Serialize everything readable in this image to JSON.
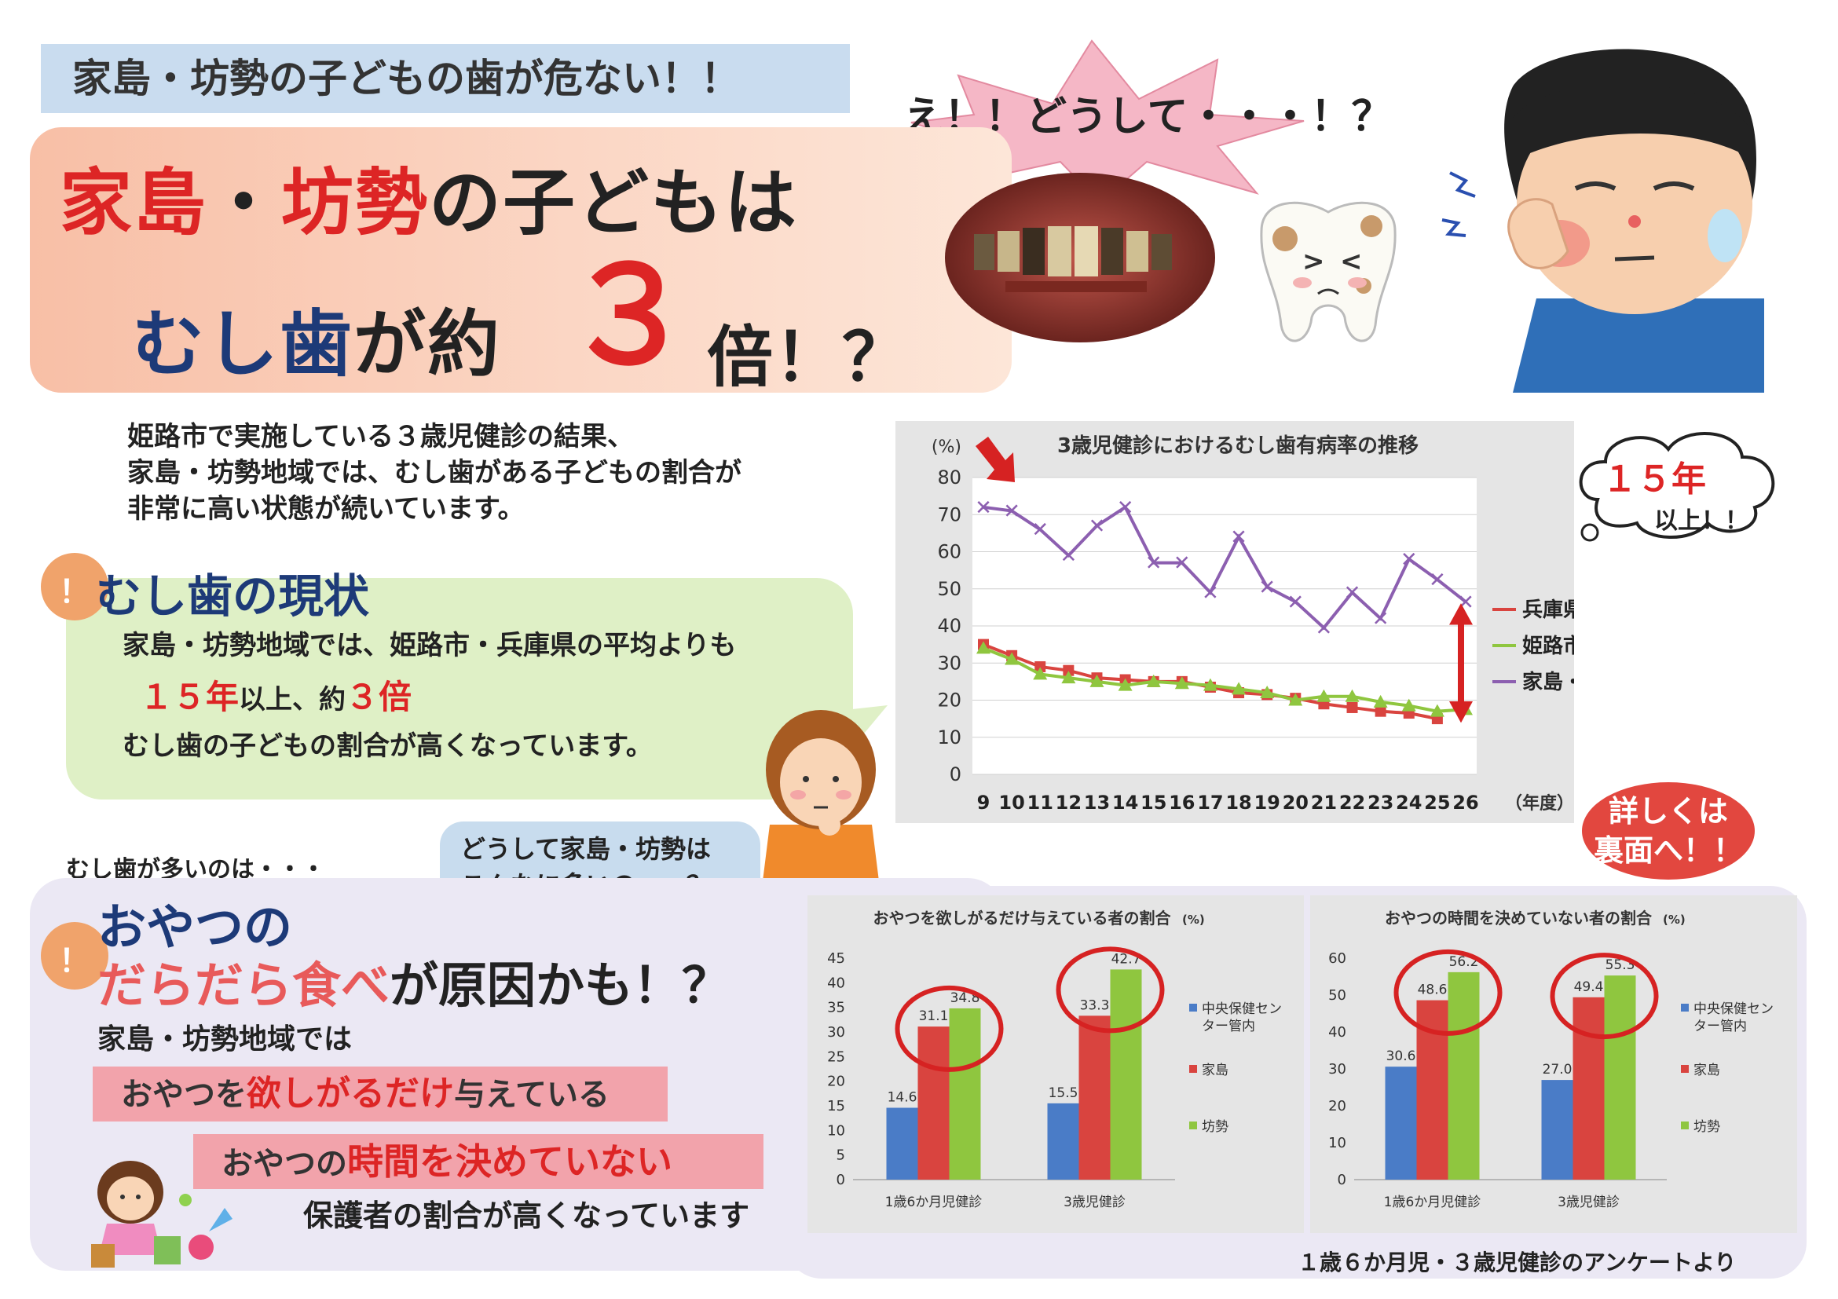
{
  "header": {
    "banner": "家島・坊勢の子どもの歯が危ない！！",
    "title_part1_red": "家島",
    "title_dot": "・",
    "title_part2_red": "坊勢",
    "title_part3": "の子どもは",
    "title_line2_a": "むし歯",
    "title_line2_b": "が約",
    "title_big_number": "３",
    "title_line2_c": "倍！？",
    "burst": "え！！どうして・・・！？"
  },
  "intro": {
    "line1": "姫路市で実施している３歳児健診の結果、",
    "line2": "家島・坊勢地域では、むし歯がある子どもの割合が",
    "line3": "非常に高い状態が続いています。"
  },
  "status": {
    "mark": "！",
    "heading": "むし歯の現状",
    "line1": "家島・坊勢地域では、姫路市・兵庫県の平均よりも",
    "years_red": "１５年",
    "years_rest": "以上、約",
    "times_red": "３倍",
    "line3": "むし歯の子どもの割合が高くなっています。"
  },
  "cloud": {
    "line1": "１５年",
    "line2": "以上！！"
  },
  "question_bubble": {
    "line1": "どうして家島・坊勢は",
    "line2": "こんなに多いの・・？"
  },
  "detail": {
    "line1": "詳しくは",
    "line2": "裏面へ！！"
  },
  "cause": {
    "lead": "むし歯が多いのは・・・",
    "mark": "！",
    "heading1": "おやつの",
    "heading2_red": "だらだら食べ",
    "heading2_rest": "が原因かも！？",
    "area": "家島・坊勢地域では",
    "bar1_a": "おやつを",
    "bar1_red": "欲しがるだけ",
    "bar1_b": "与えている",
    "bar2_a": "おやつの",
    "bar2_red": "時間を決めていない",
    "conclusion": "保護者の割合が高くなっています"
  },
  "footnote": "１歳６か月児・３歳児健診のアンケートより",
  "colors": {
    "hyogo": "#d9443f",
    "himeji": "#8fc63f",
    "ieshima": "#8c5fb0",
    "center": "#4a7cc7",
    "accent_red": "#dd2525",
    "navy": "#1d3a78"
  },
  "chart_data": [
    {
      "type": "line",
      "title": "3歳児健診におけるむし歯有病率の推移",
      "ylabel": "(%)",
      "xlabel": "（年度）",
      "ylim": [
        0,
        80
      ],
      "yticks": [
        "0",
        "10",
        "20",
        "30",
        "40",
        "50",
        "60",
        "70",
        "80"
      ],
      "categories": [
        "9",
        "10",
        "11",
        "12",
        "13",
        "14",
        "15",
        "16",
        "17",
        "18",
        "19",
        "20",
        "21",
        "22",
        "23",
        "24",
        "25",
        "26"
      ],
      "series": [
        {
          "name": "兵庫県",
          "values": [
            35,
            32,
            29,
            28,
            26,
            25.5,
            25,
            25,
            23.5,
            22,
            21.5,
            20.5,
            19,
            18,
            17,
            16.5,
            15,
            null
          ]
        },
        {
          "name": "姫路市",
          "values": [
            34,
            31,
            27,
            26,
            25,
            24,
            25,
            24.5,
            24,
            23,
            22,
            20,
            21,
            21,
            19.5,
            18.5,
            17,
            17.5
          ]
        },
        {
          "name": "家島・坊勢",
          "values": [
            72,
            71,
            66,
            59,
            67,
            72,
            57,
            57,
            49,
            64,
            50.5,
            46.5,
            39.5,
            49,
            42,
            58,
            52.5,
            46.5
          ]
        }
      ],
      "legend": "right"
    },
    {
      "type": "bar",
      "title": "おやつを欲しがるだけ与えている者の割合",
      "title_unit": "(%)",
      "ylim": [
        0,
        45
      ],
      "yticks": [
        "0",
        "5",
        "10",
        "15",
        "20",
        "25",
        "30",
        "35",
        "40",
        "45"
      ],
      "categories": [
        "1歳6か月児健診",
        "3歳児健診"
      ],
      "series": [
        {
          "name": "中央保健センター管内",
          "values": [
            14.6,
            15.5
          ]
        },
        {
          "name": "家島",
          "values": [
            31.1,
            33.3
          ]
        },
        {
          "name": "坊勢",
          "values": [
            34.8,
            42.7
          ]
        }
      ],
      "value_labels": [
        [
          "14.6",
          "31.1",
          "34.8"
        ],
        [
          "15.5",
          "33.3",
          "42.7"
        ]
      ],
      "legend_lines": [
        "中央保健セン",
        "ター管内",
        "家島",
        "坊勢"
      ],
      "legend": "right"
    },
    {
      "type": "bar",
      "title": "おやつの時間を決めていない者の割合",
      "title_unit": "(%)",
      "ylim": [
        0,
        60
      ],
      "yticks": [
        "0",
        "10",
        "20",
        "30",
        "40",
        "50",
        "60"
      ],
      "categories": [
        "1歳6か月児健診",
        "3歳児健診"
      ],
      "series": [
        {
          "name": "中央保健センター管内",
          "values": [
            30.6,
            27.0
          ]
        },
        {
          "name": "家島",
          "values": [
            48.6,
            49.4
          ]
        },
        {
          "name": "坊勢",
          "values": [
            56.2,
            55.3
          ]
        }
      ],
      "value_labels": [
        [
          "30.6",
          "48.6",
          "56.2"
        ],
        [
          "27.0",
          "49.4",
          "55.3"
        ]
      ],
      "legend_lines": [
        "中央保健セン",
        "ター管内",
        "家島",
        "坊勢"
      ],
      "legend": "right"
    }
  ]
}
